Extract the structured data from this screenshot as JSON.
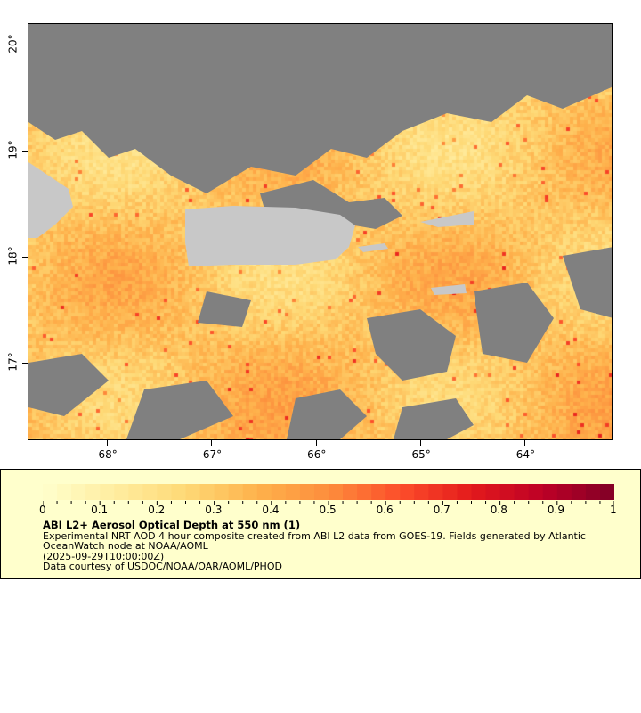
{
  "map": {
    "lon_ticks": [
      "-68°",
      "-67°",
      "-66°",
      "-65°",
      "-64°"
    ],
    "lat_ticks": [
      "20°",
      "19°",
      "18°",
      "17°"
    ],
    "lon_range": [
      -68.76,
      -63.16
    ],
    "lat_range": [
      16.27,
      20.2
    ],
    "colors": {
      "no_data": "#808080",
      "land": "#c8c8c8"
    }
  },
  "legend": {
    "ticks": [
      "0",
      "0.1",
      "0.2",
      "0.3",
      "0.4",
      "0.5",
      "0.6",
      "0.7",
      "0.8",
      "0.9",
      "1"
    ],
    "range": [
      0,
      1
    ],
    "colormap": [
      "#ffffcc",
      "#ffeda0",
      "#fed976",
      "#feb24c",
      "#fd8d3c",
      "#fc4e2a",
      "#e31a1c",
      "#bd0026",
      "#800026"
    ],
    "title": "ABI L2+ Aerosol Optical Depth at 550 nm (1)",
    "desc1": "Experimental NRT AOD 4 hour composite created from ABI L2 data from GOES-19. Fields generated by Atlantic",
    "desc2": "OceanWatch node at NOAA/AOML",
    "time": "(2025-09-29T10:00:00Z)",
    "credit": "Data courtesy of USDOC/NOAA/OAR/AOML/PHOD"
  }
}
